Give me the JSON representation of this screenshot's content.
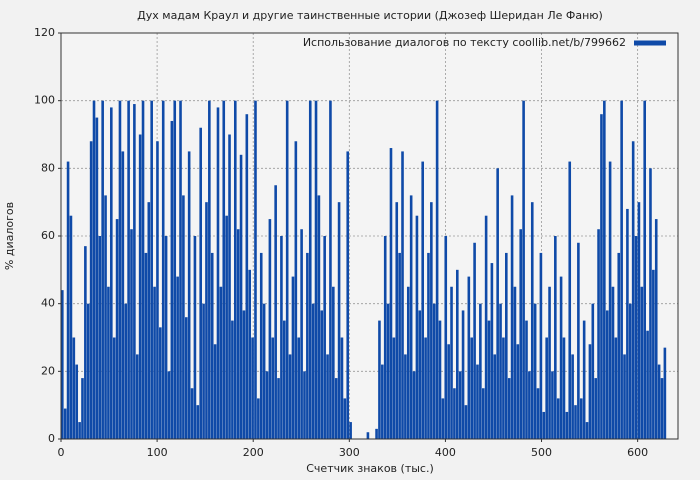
{
  "chart_data": {
    "type": "bar",
    "title": "Дух мадам Краул и другие таинственные истории (Джозеф Шеридан Ле Фаню)",
    "xlabel": "Счетчик знаков (тыс.)",
    "ylabel": "% диалогов",
    "series": [
      {
        "name": "Использование диалогов по тексту coollib.net/b/799662",
        "color": "#0f4aa8",
        "x": [
          0,
          3,
          6,
          9,
          12,
          15,
          18,
          21,
          24,
          27,
          30,
          33,
          36,
          39,
          42,
          45,
          48,
          51,
          54,
          57,
          60,
          63,
          66,
          69,
          72,
          75,
          78,
          81,
          84,
          87,
          90,
          93,
          96,
          99,
          102,
          105,
          108,
          111,
          114,
          117,
          120,
          123,
          126,
          129,
          132,
          135,
          138,
          141,
          144,
          147,
          150,
          153,
          156,
          159,
          162,
          165,
          168,
          171,
          174,
          177,
          180,
          183,
          186,
          189,
          192,
          195,
          198,
          201,
          204,
          207,
          210,
          213,
          216,
          219,
          222,
          225,
          228,
          231,
          234,
          237,
          240,
          243,
          246,
          249,
          252,
          255,
          258,
          261,
          264,
          267,
          270,
          273,
          276,
          279,
          282,
          285,
          288,
          291,
          294,
          297,
          300,
          303,
          306,
          309,
          312,
          315,
          318,
          321,
          324,
          327,
          330,
          333,
          336,
          339,
          342,
          345,
          348,
          351,
          354,
          357,
          360,
          363,
          366,
          369,
          372,
          375,
          378,
          381,
          384,
          387,
          390,
          393,
          396,
          399,
          402,
          405,
          408,
          411,
          414,
          417,
          420,
          423,
          426,
          429,
          432,
          435,
          438,
          441,
          444,
          447,
          450,
          453,
          456,
          459,
          462,
          465,
          468,
          471,
          474,
          477,
          480,
          483,
          486,
          489,
          492,
          495,
          498,
          501,
          504,
          507,
          510,
          513,
          516,
          519,
          522,
          525,
          528,
          531,
          534,
          537,
          540,
          543,
          546,
          549,
          552,
          555,
          558,
          561,
          564,
          567,
          570,
          573,
          576,
          579,
          582,
          585,
          588,
          591,
          594,
          597,
          600,
          603,
          606,
          609,
          612,
          615,
          618,
          621,
          624,
          627
        ],
        "values": [
          44,
          9,
          82,
          66,
          30,
          22,
          5,
          18,
          57,
          40,
          88,
          100,
          95,
          60,
          100,
          72,
          45,
          98,
          30,
          65,
          100,
          85,
          40,
          100,
          62,
          99,
          25,
          90,
          100,
          55,
          70,
          100,
          45,
          88,
          33,
          100,
          60,
          20,
          94,
          100,
          48,
          100,
          72,
          36,
          85,
          15,
          60,
          10,
          92,
          40,
          70,
          100,
          55,
          28,
          98,
          45,
          100,
          66,
          90,
          35,
          100,
          62,
          84,
          38,
          96,
          50,
          30,
          100,
          12,
          55,
          40,
          20,
          65,
          30,
          75,
          18,
          60,
          35,
          100,
          25,
          48,
          88,
          30,
          62,
          20,
          55,
          100,
          40,
          100,
          72,
          38,
          60,
          25,
          100,
          45,
          18,
          70,
          30,
          12,
          85,
          5,
          0,
          0,
          0,
          0,
          0,
          2,
          0,
          0,
          3,
          35,
          22,
          60,
          40,
          86,
          30,
          70,
          55,
          85,
          25,
          45,
          72,
          20,
          66,
          38,
          82,
          30,
          55,
          70,
          40,
          100,
          35,
          12,
          60,
          28,
          45,
          15,
          50,
          20,
          38,
          10,
          48,
          30,
          58,
          22,
          40,
          15,
          66,
          35,
          52,
          25,
          80,
          40,
          30,
          55,
          18,
          72,
          45,
          28,
          62,
          100,
          35,
          20,
          70,
          40,
          15,
          55,
          8,
          30,
          45,
          20,
          60,
          12,
          48,
          30,
          8,
          82,
          25,
          10,
          58,
          12,
          35,
          5,
          28,
          40,
          18,
          62,
          96,
          100,
          38,
          82,
          45,
          30,
          55,
          100,
          25,
          68,
          40,
          88,
          60,
          70,
          45,
          100,
          32,
          80,
          50,
          65,
          22,
          18,
          27
        ]
      }
    ],
    "xlim": [
      0,
      642
    ],
    "ylim": [
      0,
      120
    ],
    "xticks": [
      0,
      100,
      200,
      300,
      400,
      500,
      600
    ],
    "yticks": [
      0,
      20,
      40,
      60,
      80,
      100,
      120
    ],
    "grid": true,
    "legend": "upper right"
  }
}
